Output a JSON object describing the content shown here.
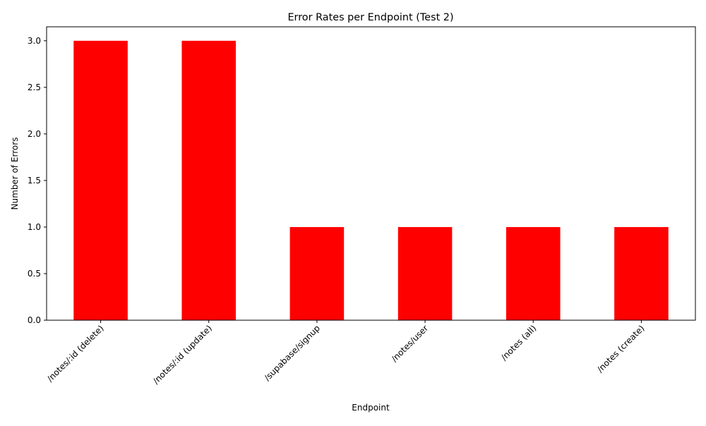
{
  "chart_data": {
    "type": "bar",
    "title": "Error Rates per Endpoint (Test 2)",
    "xlabel": "Endpoint",
    "ylabel": "Number of Errors",
    "categories": [
      "/notes/:id (delete)",
      "/notes/:id (update)",
      "/supabase/signup",
      "/notes/user",
      "/notes (all)",
      "/notes (create)"
    ],
    "values": [
      3,
      3,
      1,
      1,
      1,
      1
    ],
    "ylim": [
      0,
      3.15
    ],
    "yticks": [
      "0.0",
      "0.5",
      "1.0",
      "1.5",
      "2.0",
      "2.5",
      "3.0"
    ],
    "bar_color": "#ff0000",
    "grid": false,
    "legend": "none"
  }
}
